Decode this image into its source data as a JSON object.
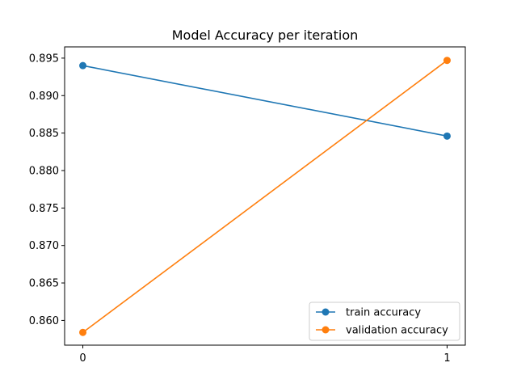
{
  "chart_data": {
    "type": "line",
    "title": "Model Accuracy per iteration",
    "xlabel": "",
    "ylabel": "",
    "x": [
      0,
      1
    ],
    "x_ticks": [
      "0",
      "1"
    ],
    "xlim": [
      -0.05,
      1.05
    ],
    "ylim": [
      0.8567,
      0.8965
    ],
    "y_ticks": [
      0.86,
      0.865,
      0.87,
      0.875,
      0.88,
      0.885,
      0.89,
      0.895
    ],
    "y_tick_labels": [
      "0.860",
      "0.865",
      "0.870",
      "0.875",
      "0.880",
      "0.885",
      "0.890",
      "0.895"
    ],
    "grid": false,
    "legend_position": "lower-right",
    "series": [
      {
        "name": "train accuracy",
        "values": [
          0.894,
          0.8846
        ],
        "color": "#1f77b4",
        "marker": "circle"
      },
      {
        "name": "validation accuracy",
        "values": [
          0.8584,
          0.8947
        ],
        "color": "#ff7f0e",
        "marker": "circle"
      }
    ]
  }
}
